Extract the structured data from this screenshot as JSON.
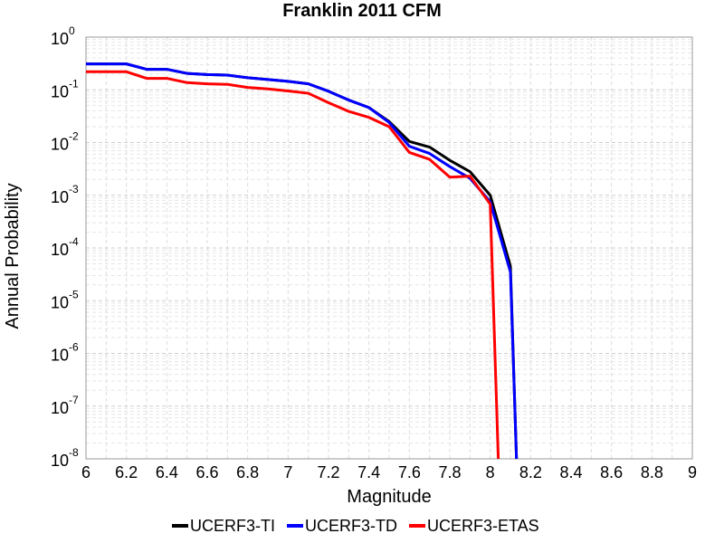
{
  "chart_data": {
    "type": "line",
    "title": "Franklin 2011 CFM",
    "xlabel": "Magnitude",
    "ylabel": "Annual Probability",
    "xlim": [
      6,
      9
    ],
    "ylim": [
      1e-08,
      1
    ],
    "yscale": "log",
    "grid": true,
    "legend_position": "bottom",
    "x_ticks": [
      "6",
      "6.2",
      "6.4",
      "6.6",
      "6.8",
      "7",
      "7.2",
      "7.4",
      "7.6",
      "7.8",
      "8",
      "8.2",
      "8.4",
      "8.6",
      "8.8",
      "9"
    ],
    "y_ticks": [
      {
        "base": "10",
        "exp": "0",
        "value": 1
      },
      {
        "base": "10",
        "exp": "-1",
        "value": 0.1
      },
      {
        "base": "10",
        "exp": "-2",
        "value": 0.01
      },
      {
        "base": "10",
        "exp": "-3",
        "value": 0.001
      },
      {
        "base": "10",
        "exp": "-4",
        "value": 0.0001
      },
      {
        "base": "10",
        "exp": "-5",
        "value": 1e-05
      },
      {
        "base": "10",
        "exp": "-6",
        "value": 1e-06
      },
      {
        "base": "10",
        "exp": "-7",
        "value": 1e-07
      },
      {
        "base": "10",
        "exp": "-8",
        "value": 1e-08
      }
    ],
    "series": [
      {
        "name": "UCERF3-TI",
        "color": "#000000",
        "x": [
          6.0,
          6.2,
          6.3,
          6.4,
          6.5,
          6.6,
          6.7,
          6.8,
          6.9,
          7.0,
          7.1,
          7.2,
          7.3,
          7.4,
          7.5,
          7.6,
          7.7,
          7.8,
          7.9,
          8.0,
          8.1,
          8.13
        ],
        "y": [
          0.31,
          0.31,
          0.245,
          0.245,
          0.205,
          0.195,
          0.19,
          0.17,
          0.157,
          0.145,
          0.13,
          0.094,
          0.064,
          0.046,
          0.025,
          0.0105,
          0.0082,
          0.0046,
          0.0028,
          0.001,
          4.5e-05,
          1e-08
        ]
      },
      {
        "name": "UCERF3-TD",
        "color": "#0000ff",
        "x": [
          6.0,
          6.2,
          6.3,
          6.4,
          6.5,
          6.6,
          6.7,
          6.8,
          6.9,
          7.0,
          7.1,
          7.2,
          7.3,
          7.4,
          7.5,
          7.6,
          7.7,
          7.8,
          7.9,
          8.0,
          8.1,
          8.13
        ],
        "y": [
          0.31,
          0.31,
          0.245,
          0.245,
          0.205,
          0.195,
          0.19,
          0.17,
          0.157,
          0.145,
          0.13,
          0.094,
          0.064,
          0.046,
          0.024,
          0.0085,
          0.0062,
          0.0035,
          0.0021,
          0.00075,
          3.5e-05,
          1e-08
        ]
      },
      {
        "name": "UCERF3-ETAS",
        "color": "#ff0000",
        "x": [
          6.0,
          6.2,
          6.3,
          6.4,
          6.5,
          6.6,
          6.7,
          6.8,
          6.9,
          7.0,
          7.1,
          7.2,
          7.3,
          7.4,
          7.5,
          7.6,
          7.7,
          7.8,
          7.9,
          8.0,
          8.04
        ],
        "y": [
          0.22,
          0.22,
          0.165,
          0.165,
          0.137,
          0.13,
          0.127,
          0.111,
          0.104,
          0.095,
          0.086,
          0.057,
          0.039,
          0.03,
          0.02,
          0.0065,
          0.0048,
          0.0022,
          0.0023,
          0.00068,
          1e-08
        ]
      }
    ]
  }
}
